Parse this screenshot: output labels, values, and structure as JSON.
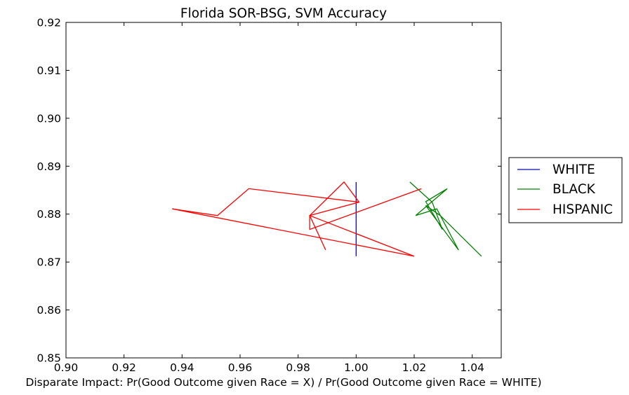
{
  "chart_data": {
    "type": "line",
    "title": "Florida SOR-BSG, SVM Accuracy",
    "xlabel": "Disparate Impact: Pr(Good Outcome given Race = X) / Pr(Good Outcome given Race = WHITE)",
    "ylabel": "",
    "xlim": [
      0.9,
      1.05
    ],
    "ylim": [
      0.85,
      0.92
    ],
    "xticks": [
      "0.90",
      "0.92",
      "0.94",
      "0.96",
      "0.98",
      "1.00",
      "1.02",
      "1.04"
    ],
    "yticks": [
      "0.85",
      "0.86",
      "0.87",
      "0.88",
      "0.89",
      "0.90",
      "0.91",
      "0.92"
    ],
    "grid": false,
    "legend_position": "outside-right",
    "series": [
      {
        "name": "WHITE",
        "color": "#0000ff",
        "x": [
          1.0,
          1.0,
          1.0,
          1.0,
          1.0,
          1.0,
          1.0,
          1.0
        ],
        "y": [
          0.8867,
          0.8712,
          0.8853,
          0.8725,
          0.883,
          0.876,
          0.8845,
          0.878
        ]
      },
      {
        "name": "BLACK",
        "color": "#008000",
        "x": [
          1.0185,
          1.0262,
          1.0297,
          1.024,
          1.0314,
          1.0205,
          1.0278,
          1.0353,
          1.024,
          1.029,
          1.0432
        ],
        "y": [
          0.8867,
          0.8825,
          0.8768,
          0.8826,
          0.8853,
          0.8797,
          0.8811,
          0.8725,
          0.8818,
          0.8797,
          0.8712
        ]
      },
      {
        "name": "HISPANIC",
        "color": "#ff0000",
        "x": [
          1.0225,
          0.984,
          0.984,
          1.001,
          0.9958,
          0.984,
          1.02,
          0.9366,
          0.9522,
          0.963,
          1.001,
          0.984,
          0.9895
        ],
        "y": [
          0.8853,
          0.8768,
          0.8797,
          0.8825,
          0.8867,
          0.8797,
          0.8712,
          0.8811,
          0.8797,
          0.8853,
          0.8825,
          0.8797,
          0.8725
        ]
      }
    ]
  }
}
